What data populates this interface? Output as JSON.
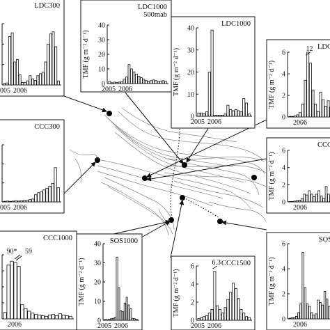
{
  "chart_data": [
    {
      "id": "LDC300",
      "type": "bar",
      "title": "LDC300",
      "subtitle": "",
      "ylabel": "",
      "ylim": [
        0,
        12
      ],
      "yticks": [
        "",
        "",
        "",
        ""
      ],
      "xticks": [
        "2005",
        "2006"
      ],
      "values": [
        0.3,
        0.4,
        9.5,
        10.2,
        4.5,
        5,
        2,
        0.5,
        0.5,
        0.8,
        1.8,
        1.2,
        0.9,
        1.8,
        2.2,
        2.5,
        4.5,
        8,
        10,
        10.4,
        7.5,
        0.8
      ]
    },
    {
      "id": "LDC1000_500mab",
      "type": "bar",
      "title": "LDC1000",
      "subtitle": "500mab",
      "ylabel": "TMF (g m⁻² d⁻¹)",
      "ylim": [
        0,
        40
      ],
      "yticks": [
        "0",
        "10",
        "20",
        "30",
        "40"
      ],
      "xticks": [
        "2005",
        "2006"
      ],
      "values": [
        1.5,
        0.5,
        1,
        0.8,
        1,
        1.2,
        3,
        4.5,
        13,
        10,
        8,
        6.5,
        5,
        4,
        3,
        2,
        1.5,
        2,
        2.5,
        2,
        1.5,
        1.5,
        2,
        1.5
      ]
    },
    {
      "id": "LDC1000",
      "type": "bar",
      "title": "LDC1000",
      "subtitle": "",
      "ylabel": "TMF (g m⁻² d⁻¹)",
      "ylim": [
        0,
        40
      ],
      "yticks": [
        "0",
        "10",
        "20",
        "30",
        "40"
      ],
      "xticks": [
        "2005",
        "2006"
      ],
      "values": [
        1.5,
        1.5,
        1.2,
        2,
        20,
        39,
        0.5,
        0.5,
        0.5,
        0.5,
        1,
        5,
        3,
        2.5,
        3,
        2.5,
        2,
        8,
        6,
        1
      ]
    },
    {
      "id": "LDC_right",
      "type": "bar",
      "title": "LDC",
      "subtitle": "",
      "ylabel": "TMF (g m⁻² d⁻¹)",
      "ylim": [
        0,
        6
      ],
      "yticks": [
        "0",
        "2",
        "4",
        "6"
      ],
      "xticks": [
        "2006"
      ],
      "break_label": "12",
      "values": [
        0.05,
        0.05,
        0.1,
        0.2,
        0.4,
        1.2,
        3.4,
        6,
        5,
        2.5,
        1.2,
        0.5,
        2.3,
        1.6,
        1,
        1.5,
        0.9,
        0.7
      ]
    },
    {
      "id": "CCC300",
      "type": "bar",
      "title": "CCC300",
      "subtitle": "",
      "ylabel": "",
      "ylim": [
        0,
        20
      ],
      "yticks": [
        "",
        "",
        "",
        ""
      ],
      "xticks": [
        "2005",
        "2006"
      ],
      "values": [
        0.2,
        0.3,
        0.2,
        0.3,
        0.4,
        0.3,
        0.4,
        0.5,
        0.5,
        0.8,
        1,
        2.5,
        3.2,
        3.5,
        4.2,
        4.8,
        5.5,
        6.5,
        12,
        5
      ]
    },
    {
      "id": "CCC_right",
      "type": "bar",
      "title": "CCC",
      "subtitle": "",
      "ylabel": "TMF (g m⁻² d⁻¹)",
      "ylim": [
        0,
        6
      ],
      "yticks": [
        "0",
        "2",
        "4",
        "6"
      ],
      "xticks": [
        "2006"
      ],
      "values": [
        0.05,
        0.05,
        0.1,
        0.15,
        0.2,
        0.4,
        0.9,
        0.8,
        1.3,
        0.9,
        0.6,
        0.9,
        1.3,
        0.7,
        0.4,
        1.8,
        0.9,
        0.5,
        0.3
      ]
    },
    {
      "id": "CCC1000",
      "type": "bar",
      "title": "CCC1000",
      "subtitle": "",
      "ylabel": "",
      "ylim": [
        0,
        50
      ],
      "yticks": [
        "",
        "",
        "",
        "",
        ""
      ],
      "xticks": [
        "2006"
      ],
      "break_labels": [
        "90*",
        "59"
      ],
      "values": [
        5,
        42,
        45,
        44,
        41,
        11,
        8,
        6,
        4.5,
        3.5,
        3,
        2.5,
        2,
        3,
        3.5,
        2.5,
        4,
        3,
        2.5,
        2
      ]
    },
    {
      "id": "SOS1000",
      "type": "bar",
      "title": "SOS1000",
      "subtitle": "",
      "ylabel": "TMF (g m⁻² d⁻¹)",
      "ylim": [
        0,
        40
      ],
      "yticks": [
        "0",
        "10",
        "20",
        "30",
        "40"
      ],
      "xticks": [
        "2005",
        "2006"
      ],
      "values": [
        0.5,
        0.3,
        0.5,
        0.8,
        1,
        1.5,
        33,
        17,
        5,
        4.5,
        9,
        12,
        8,
        6,
        1,
        0.8,
        0.5
      ]
    },
    {
      "id": "CCC1500",
      "type": "bar",
      "title": "CCC1500",
      "subtitle": "",
      "ylabel": "TMF (g m⁻² d⁻¹)",
      "ylim": [
        0,
        6
      ],
      "yticks": [
        "0",
        "2",
        "4",
        "6"
      ],
      "xticks": [
        "2005",
        "2006"
      ],
      "break_label": "6.3",
      "values": [
        0.2,
        0.3,
        0.4,
        0.5,
        0.8,
        1.2,
        5.4,
        1.6,
        1.2,
        0.8,
        1.4,
        2.3,
        3.1,
        4.1,
        3.5,
        2.4,
        1.2,
        0.8,
        0.4,
        0.3
      ]
    },
    {
      "id": "SOS_right",
      "type": "bar",
      "title": "SOS",
      "subtitle": "",
      "ylabel": "TMF (g m⁻² d⁻¹)",
      "ylim": [
        0,
        6
      ],
      "yticks": [
        "0",
        "2",
        "4",
        "6"
      ],
      "xticks": [
        "2006"
      ],
      "values": [
        0.05,
        0.1,
        0.1,
        0.2,
        0.5,
        1.2,
        5.3,
        2.5,
        1.2,
        1,
        0.5,
        0.3,
        0.4,
        1.5,
        1.3,
        1.1,
        2.2,
        1.6,
        1,
        2.3,
        0.4
      ]
    }
  ],
  "tick_suffix": ""
}
